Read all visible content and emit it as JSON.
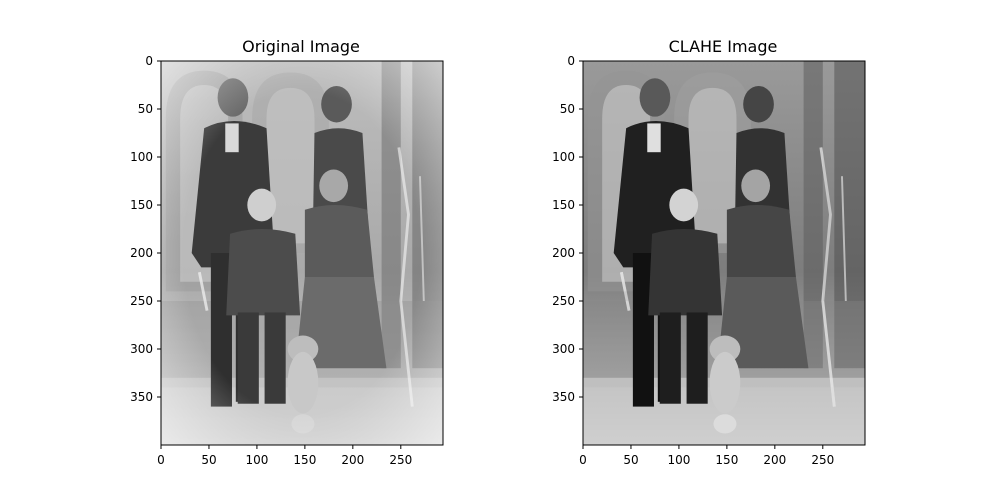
{
  "figure": {
    "panels": [
      {
        "title": "Original Image",
        "image_size": {
          "width": 294,
          "height": 400
        },
        "x_ticks": [
          0,
          50,
          100,
          150,
          200,
          250
        ],
        "y_ticks": [
          0,
          50,
          100,
          150,
          200,
          250,
          300,
          350
        ],
        "image_description": "grayscale vintage family portrait (man, woman, boy, girl and small dog) before enhancement"
      },
      {
        "title": "CLAHE Image",
        "image_size": {
          "width": 294,
          "height": 400
        },
        "x_ticks": [
          0,
          50,
          100,
          150,
          200,
          250
        ],
        "y_ticks": [
          0,
          50,
          100,
          150,
          200,
          250,
          300,
          350
        ],
        "image_description": "same portrait after CLAHE contrast enhancement (darker, higher local contrast)"
      }
    ]
  }
}
